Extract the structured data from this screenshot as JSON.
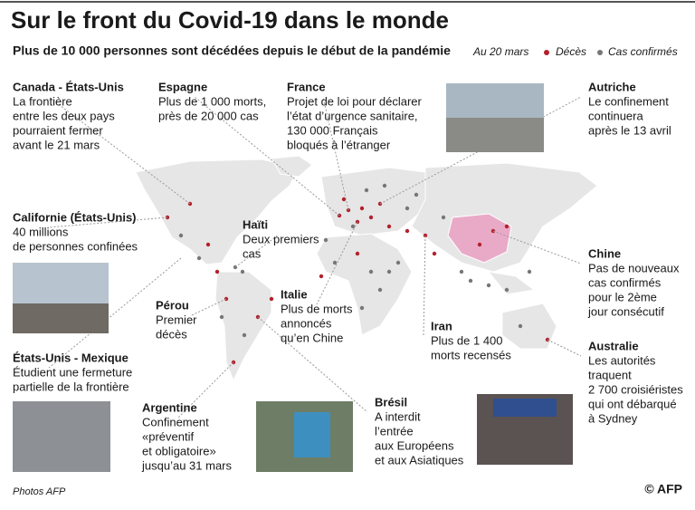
{
  "header": {
    "title": "Sur le front du Covid-19 dans le monde",
    "subtitle": "Plus de 10 000 personnes sont décédées depuis le début de la pandémie",
    "date": "Au 20 mars"
  },
  "legend": {
    "deaths": "Décès",
    "cases": "Cas confirmés"
  },
  "annotations": [
    {
      "title": "Canada - États-Unis",
      "lines": [
        "La frontière",
        "entre les deux pays",
        "pourraient fermer",
        "avant le 21 mars"
      ]
    },
    {
      "title": "Espagne",
      "lines": [
        "Plus de 1 000 morts,",
        "près de 20 000 cas"
      ]
    },
    {
      "title": "France",
      "lines": [
        "Projet de loi pour déclarer",
        "l’état d’urgence sanitaire,",
        "130 000 Français",
        "bloqués à l’étranger"
      ]
    },
    {
      "title": "Autriche",
      "lines": [
        "Le confinement",
        "continuera",
        "après le 13 avril"
      ]
    },
    {
      "title": "Californie (États-Unis)",
      "lines": [
        "40 millions",
        "de personnes confinées"
      ]
    },
    {
      "title": "Haïti",
      "lines": [
        "Deux premiers",
        "cas"
      ]
    },
    {
      "title": "Chine",
      "lines": [
        "Pas de nouveaux",
        "cas confirmés",
        "pour le 2ème",
        "jour consécutif"
      ]
    },
    {
      "title": "Pérou",
      "lines": [
        "Premier",
        "décès"
      ]
    },
    {
      "title": "Italie",
      "lines": [
        "Plus de morts",
        "annoncés",
        "qu’en Chine"
      ]
    },
    {
      "title": "Iran",
      "lines": [
        "Plus de 1 400",
        "morts recensés"
      ]
    },
    {
      "title": "Australie",
      "lines": [
        "Les autorités",
        "traquent",
        "2 700 croisiéristes",
        "qui ont débarqué",
        "à Sydney"
      ]
    },
    {
      "title": "États-Unis - Mexique",
      "lines": [
        "Étudient une fermeture",
        "partielle de la frontière"
      ]
    },
    {
      "title": "Argentine",
      "lines": [
        "Confinement",
        "«préventif",
        "et obligatoire»",
        "jusqu’au 31 mars"
      ]
    },
    {
      "title": "Brésil",
      "lines": [
        "A interdit",
        "l’entrée",
        "aux Européens",
        "et aux Asiatiques"
      ]
    }
  ],
  "footer": {
    "credit": "Photos AFP",
    "logo": "© AFP"
  }
}
